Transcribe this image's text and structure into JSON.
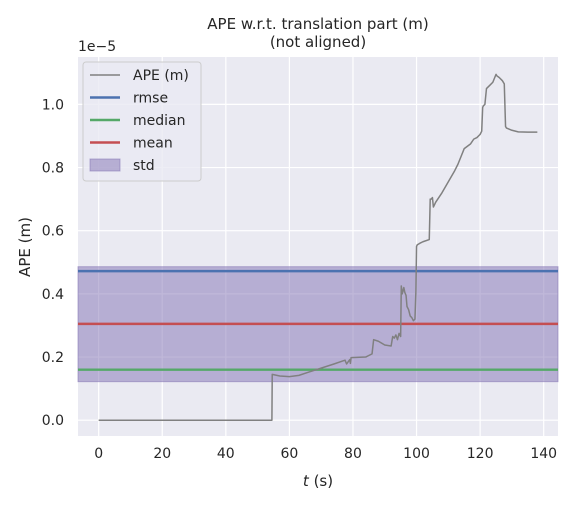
{
  "chart_data": {
    "type": "line",
    "title": "APE w.r.t. translation part (m)",
    "subtitle": "(not aligned)",
    "xlabel_italic": "t",
    "xlabel_rest": " (s)",
    "ylabel": "APE (m)",
    "y_offset_label": "1e−5",
    "xlim": [
      -6.5,
      144.5
    ],
    "ylim": [
      -0.05,
      1.15
    ],
    "x_ticks": [
      0,
      20,
      40,
      60,
      80,
      100,
      120,
      140
    ],
    "y_ticks": [
      0.0,
      0.2,
      0.4,
      0.6,
      0.8,
      1.0
    ],
    "y_tick_labels": [
      "0.0",
      "0.2",
      "0.4",
      "0.6",
      "0.8",
      "1.0"
    ],
    "grid": true,
    "legend_position": "top-left",
    "colors": {
      "background": "#eaeaf2",
      "grid": "#ffffff",
      "ape": "#808080",
      "rmse": "#4c72b0",
      "median": "#55a868",
      "mean": "#c44e52",
      "std_fill": "#8172b3"
    },
    "series": [
      {
        "name": "APE (m)",
        "kind": "line",
        "x": [
          0,
          54.5,
          54.6,
          57,
          60,
          63,
          66,
          70,
          74,
          77.5,
          78,
          79,
          79.2,
          79.4,
          84,
          86,
          86.5,
          88,
          90,
          92,
          92.5,
          93,
          93.5,
          94,
          94.5,
          95,
          95.2,
          95.5,
          96,
          96.3,
          96.7,
          97,
          97.5,
          98,
          98.5,
          99,
          99.5,
          99.8,
          100,
          100.2,
          101,
          102,
          104,
          104.3,
          104.6,
          105,
          105.3,
          106,
          108,
          110,
          112,
          113,
          114,
          115,
          117,
          118,
          119,
          120,
          120.5,
          120.8,
          121,
          121.5,
          122,
          123,
          124,
          125,
          125.3,
          126,
          127,
          127.6,
          128,
          128.3,
          130,
          132,
          135,
          138
        ],
        "y": [
          0.0,
          0.0,
          0.145,
          0.14,
          0.138,
          0.142,
          0.152,
          0.165,
          0.178,
          0.19,
          0.178,
          0.192,
          0.18,
          0.198,
          0.2,
          0.21,
          0.255,
          0.25,
          0.238,
          0.235,
          0.265,
          0.26,
          0.27,
          0.255,
          0.275,
          0.265,
          0.425,
          0.4,
          0.42,
          0.405,
          0.395,
          0.36,
          0.35,
          0.33,
          0.325,
          0.315,
          0.32,
          0.41,
          0.55,
          0.555,
          0.56,
          0.565,
          0.572,
          0.7,
          0.7,
          0.705,
          0.675,
          0.69,
          0.72,
          0.755,
          0.79,
          0.81,
          0.835,
          0.86,
          0.875,
          0.89,
          0.895,
          0.905,
          0.915,
          0.99,
          0.995,
          1.0,
          1.05,
          1.06,
          1.07,
          1.095,
          1.09,
          1.085,
          1.075,
          1.065,
          0.93,
          0.925,
          0.918,
          0.913,
          0.912,
          0.912
        ]
      },
      {
        "name": "rmse",
        "kind": "hline",
        "y": 0.472
      },
      {
        "name": "median",
        "kind": "hline",
        "y": 0.16
      },
      {
        "name": "mean",
        "kind": "hline",
        "y": 0.305
      },
      {
        "name": "std",
        "kind": "band",
        "y_low": 0.122,
        "y_high": 0.486
      }
    ]
  }
}
